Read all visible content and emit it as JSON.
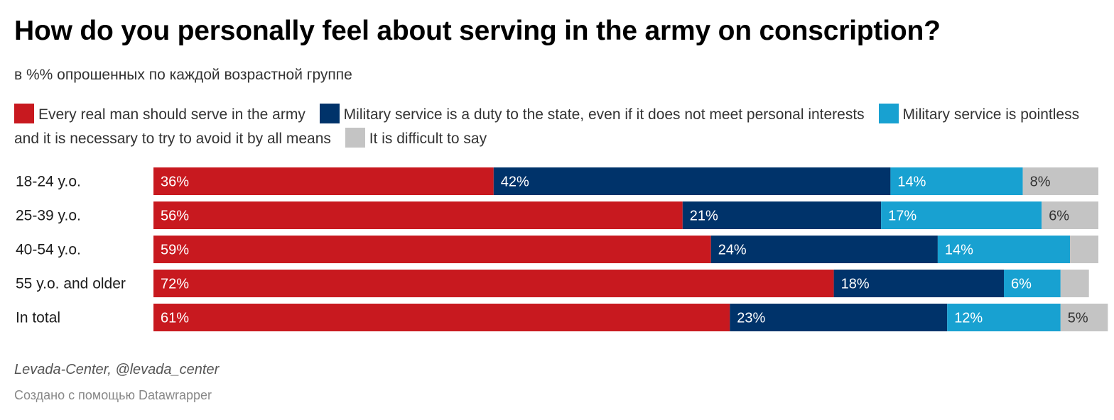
{
  "title": "How do you personally feel about serving in the army on conscription?",
  "subtitle": "в %% опрошенных по каждой возрастной группе",
  "source": "Levada-Center, @levada_center",
  "credit": "Создано с помощью Datawrapper",
  "chart_data": {
    "type": "bar",
    "orientation": "horizontal",
    "stacked": true,
    "title": "How do you personally feel about serving in the army on conscription?",
    "subtitle": "в %% опрошенных по каждой возрастной группе",
    "legend_position": "top",
    "grid": false,
    "xlim": [
      0,
      100
    ],
    "categories": [
      "18-24 y.o.",
      "25-39 y.o.",
      "40-54 y.o.",
      "55 y.o. and older",
      "In total"
    ],
    "series": [
      {
        "name": "Every real man should serve in the army",
        "color": "#c8191f",
        "label_color": "#ffffff",
        "values": [
          36,
          56,
          59,
          72,
          61
        ],
        "labels": [
          "36%",
          "56%",
          "59%",
          "72%",
          "61%"
        ]
      },
      {
        "name": "Military service is a duty to the state, even if it does not meet personal interests",
        "color": "#00336a",
        "label_color": "#ffffff",
        "values": [
          42,
          21,
          24,
          18,
          23
        ],
        "labels": [
          "42%",
          "21%",
          "24%",
          "18%",
          "23%"
        ]
      },
      {
        "name": "Military service is pointless and it is necessary to try to avoid it by all means",
        "color": "#18a1d1",
        "label_color": "#ffffff",
        "values": [
          14,
          17,
          14,
          6,
          12
        ],
        "labels": [
          "14%",
          "17%",
          "14%",
          "6%",
          "12%"
        ]
      },
      {
        "name": "It is difficult to say",
        "color": "#c4c4c4",
        "label_color": "#333333",
        "values": [
          8,
          6,
          3,
          3,
          5
        ],
        "labels": [
          "8%",
          "6%",
          "",
          "",
          "5%"
        ]
      }
    ]
  }
}
